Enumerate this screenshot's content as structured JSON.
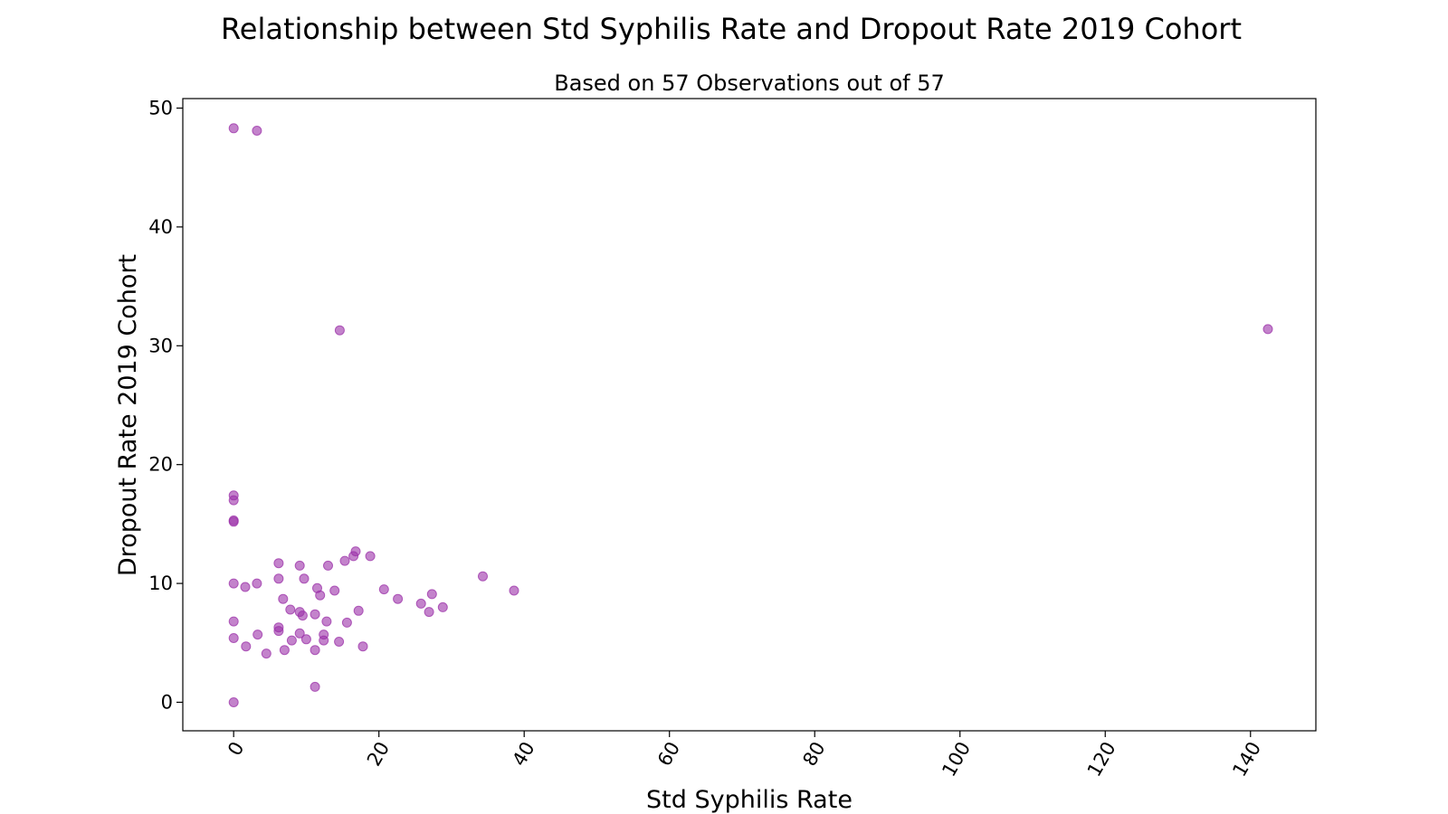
{
  "chart_data": {
    "type": "scatter",
    "title": "Relationship between Std Syphilis Rate and Dropout Rate 2019 Cohort",
    "subtitle": "Based on 57 Observations out of 57",
    "xlabel": "Std Syphilis Rate",
    "ylabel": "Dropout Rate 2019 Cohort",
    "xlim": [
      -7,
      149
    ],
    "ylim": [
      -2.4,
      50.8
    ],
    "xticks": [
      0,
      20,
      40,
      60,
      80,
      100,
      120,
      140
    ],
    "xtick_labels": [
      "0",
      "20",
      "40",
      "60",
      "80",
      "100",
      "120",
      "140"
    ],
    "yticks": [
      0,
      10,
      20,
      30,
      40,
      50
    ],
    "ytick_labels": [
      "0",
      "10",
      "20",
      "30",
      "40",
      "50"
    ],
    "xtick_rotation": 60,
    "grid": false,
    "legend": false,
    "marker_color": "#9b30a8",
    "marker_alpha": 0.6,
    "points": [
      {
        "x": 0,
        "y": 48.3
      },
      {
        "x": 3.2,
        "y": 48.1
      },
      {
        "x": 14.6,
        "y": 31.3
      },
      {
        "x": 142.4,
        "y": 31.4
      },
      {
        "x": 0,
        "y": 17.4
      },
      {
        "x": 0,
        "y": 17.0
      },
      {
        "x": 0,
        "y": 15.3
      },
      {
        "x": 0,
        "y": 15.2
      },
      {
        "x": 0,
        "y": 10.0
      },
      {
        "x": 1.6,
        "y": 9.7
      },
      {
        "x": 3.2,
        "y": 10.0
      },
      {
        "x": 0,
        "y": 6.8
      },
      {
        "x": 0,
        "y": 5.4
      },
      {
        "x": 1.7,
        "y": 4.7
      },
      {
        "x": 3.3,
        "y": 5.7
      },
      {
        "x": 4.5,
        "y": 4.1
      },
      {
        "x": 6.2,
        "y": 11.7
      },
      {
        "x": 6.2,
        "y": 10.4
      },
      {
        "x": 6.8,
        "y": 8.7
      },
      {
        "x": 6.2,
        "y": 6.3
      },
      {
        "x": 6.2,
        "y": 6.0
      },
      {
        "x": 7.0,
        "y": 4.4
      },
      {
        "x": 7.8,
        "y": 7.8
      },
      {
        "x": 8.0,
        "y": 5.2
      },
      {
        "x": 9.1,
        "y": 11.5
      },
      {
        "x": 9.7,
        "y": 10.4
      },
      {
        "x": 9.1,
        "y": 7.6
      },
      {
        "x": 9.5,
        "y": 7.3
      },
      {
        "x": 9.1,
        "y": 5.8
      },
      {
        "x": 10.0,
        "y": 5.3
      },
      {
        "x": 11.2,
        "y": 7.4
      },
      {
        "x": 11.2,
        "y": 4.4
      },
      {
        "x": 11.2,
        "y": 1.3
      },
      {
        "x": 11.5,
        "y": 9.6
      },
      {
        "x": 11.9,
        "y": 9.0
      },
      {
        "x": 12.4,
        "y": 5.7
      },
      {
        "x": 12.4,
        "y": 5.2
      },
      {
        "x": 12.8,
        "y": 6.8
      },
      {
        "x": 13.0,
        "y": 11.5
      },
      {
        "x": 13.9,
        "y": 9.4
      },
      {
        "x": 14.5,
        "y": 5.1
      },
      {
        "x": 15.3,
        "y": 11.9
      },
      {
        "x": 15.6,
        "y": 6.7
      },
      {
        "x": 16.5,
        "y": 12.3
      },
      {
        "x": 16.8,
        "y": 12.7
      },
      {
        "x": 17.2,
        "y": 7.7
      },
      {
        "x": 17.8,
        "y": 4.7
      },
      {
        "x": 18.8,
        "y": 12.3
      },
      {
        "x": 20.7,
        "y": 9.5
      },
      {
        "x": 22.6,
        "y": 8.7
      },
      {
        "x": 25.8,
        "y": 8.3
      },
      {
        "x": 26.9,
        "y": 7.6
      },
      {
        "x": 27.3,
        "y": 9.1
      },
      {
        "x": 28.8,
        "y": 8.0
      },
      {
        "x": 34.3,
        "y": 10.6
      },
      {
        "x": 38.6,
        "y": 9.4
      },
      {
        "x": 0,
        "y": 0
      }
    ]
  }
}
